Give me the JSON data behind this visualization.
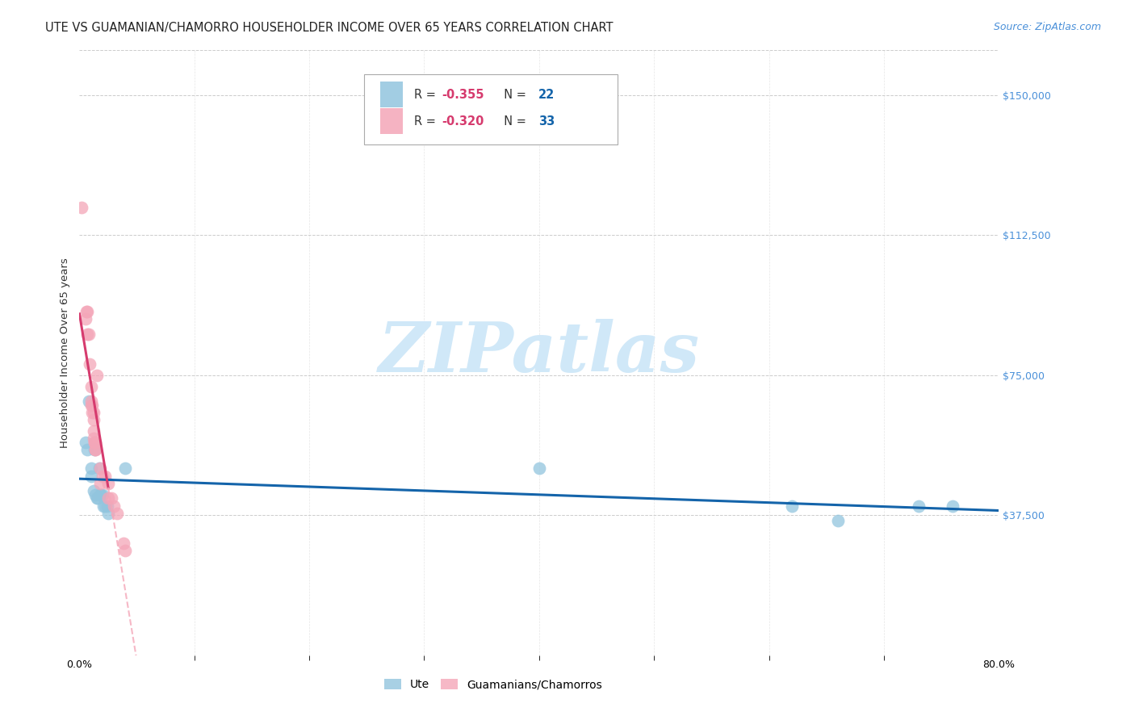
{
  "title": "UTE VS GUAMANIAN/CHAMORRO HOUSEHOLDER INCOME OVER 65 YEARS CORRELATION CHART",
  "source": "Source: ZipAtlas.com",
  "ylabel": "Householder Income Over 65 years",
  "y_ticks": [
    0,
    37500,
    75000,
    112500,
    150000
  ],
  "y_tick_labels": [
    "",
    "$37,500",
    "$75,000",
    "$112,500",
    "$150,000"
  ],
  "ylim": [
    0,
    162000
  ],
  "xlim": [
    0.0,
    0.8
  ],
  "ute_color": "#92c5de",
  "guam_color": "#f4a6b8",
  "ute_line_color": "#1464aa",
  "guam_line_color": "#d63b6e",
  "guam_dashed_color": "#f4a6b8",
  "background_color": "#ffffff",
  "grid_color": "#cccccc",
  "watermark_color": "#d0e8f8",
  "ute_data": [
    [
      0.005,
      57000
    ],
    [
      0.007,
      55000
    ],
    [
      0.008,
      68000
    ],
    [
      0.01,
      50000
    ],
    [
      0.01,
      48000
    ],
    [
      0.012,
      44000
    ],
    [
      0.013,
      55000
    ],
    [
      0.014,
      43000
    ],
    [
      0.015,
      42000
    ],
    [
      0.016,
      42000
    ],
    [
      0.017,
      50000
    ],
    [
      0.018,
      43000
    ],
    [
      0.019,
      43000
    ],
    [
      0.02,
      43000
    ],
    [
      0.021,
      40000
    ],
    [
      0.022,
      40000
    ],
    [
      0.024,
      40000
    ],
    [
      0.025,
      38000
    ],
    [
      0.04,
      50000
    ],
    [
      0.4,
      50000
    ],
    [
      0.62,
      40000
    ],
    [
      0.66,
      36000
    ],
    [
      0.73,
      40000
    ],
    [
      0.76,
      40000
    ]
  ],
  "guam_data": [
    [
      0.002,
      120000
    ],
    [
      0.005,
      90000
    ],
    [
      0.006,
      92000
    ],
    [
      0.007,
      92000
    ],
    [
      0.007,
      86000
    ],
    [
      0.008,
      86000
    ],
    [
      0.009,
      78000
    ],
    [
      0.01,
      72000
    ],
    [
      0.01,
      68000
    ],
    [
      0.01,
      67000
    ],
    [
      0.011,
      67000
    ],
    [
      0.011,
      65000
    ],
    [
      0.012,
      65000
    ],
    [
      0.012,
      63000
    ],
    [
      0.012,
      60000
    ],
    [
      0.012,
      58000
    ],
    [
      0.013,
      57000
    ],
    [
      0.013,
      57000
    ],
    [
      0.014,
      57000
    ],
    [
      0.014,
      55000
    ],
    [
      0.014,
      55000
    ],
    [
      0.015,
      75000
    ],
    [
      0.018,
      50000
    ],
    [
      0.018,
      46000
    ],
    [
      0.02,
      48000
    ],
    [
      0.022,
      48000
    ],
    [
      0.025,
      46000
    ],
    [
      0.025,
      42000
    ],
    [
      0.028,
      42000
    ],
    [
      0.03,
      40000
    ],
    [
      0.033,
      38000
    ],
    [
      0.038,
      30000
    ],
    [
      0.04,
      28000
    ]
  ],
  "title_fontsize": 10.5,
  "axis_label_fontsize": 9.5,
  "tick_label_fontsize": 9,
  "source_fontsize": 9
}
